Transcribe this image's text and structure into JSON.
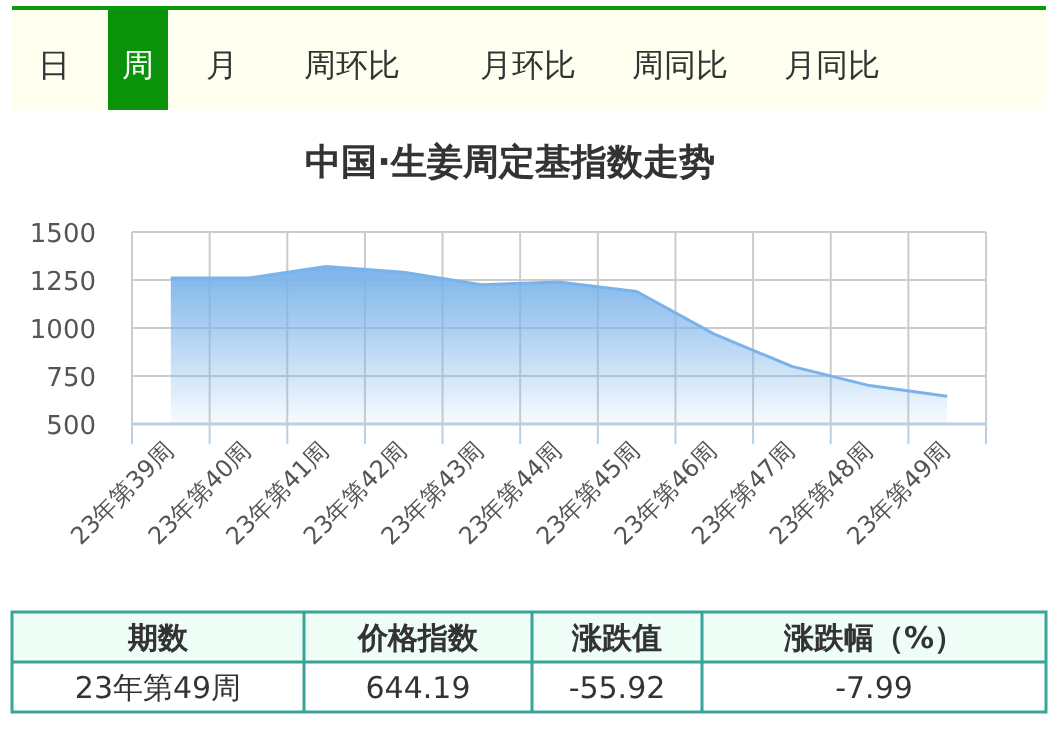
{
  "chart_data": {
    "type": "area",
    "title": "中国·生姜周定基指数走势",
    "categories": [
      "23年第39周",
      "23年第40周",
      "23年第41周",
      "23年第42周",
      "23年第43周",
      "23年第44周",
      "23年第45周",
      "23年第46周",
      "23年第47周",
      "23年第48周",
      "23年第49周"
    ],
    "values": [
      1260,
      1260,
      1320,
      1290,
      1225,
      1240,
      1190,
      968,
      800,
      700,
      644.19
    ],
    "color": "#7ab3ea",
    "ylim": [
      500,
      1500
    ],
    "yticks": [
      500,
      750,
      1000,
      1250,
      1500
    ],
    "grid": true,
    "annotations": [
      "日",
      "周",
      "月",
      "周环比",
      "月环比",
      "周同比",
      "月同比",
      "期数",
      "价格指数",
      "涨跌值",
      "涨跌幅（%）",
      "23年第49周",
      "644.19",
      "-55.92",
      "-7.99"
    ]
  }
}
